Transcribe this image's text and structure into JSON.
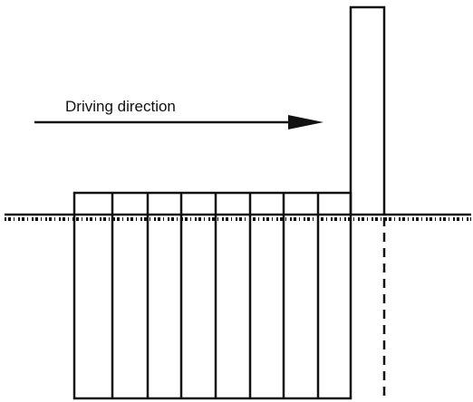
{
  "label": "Driving direction"
}
